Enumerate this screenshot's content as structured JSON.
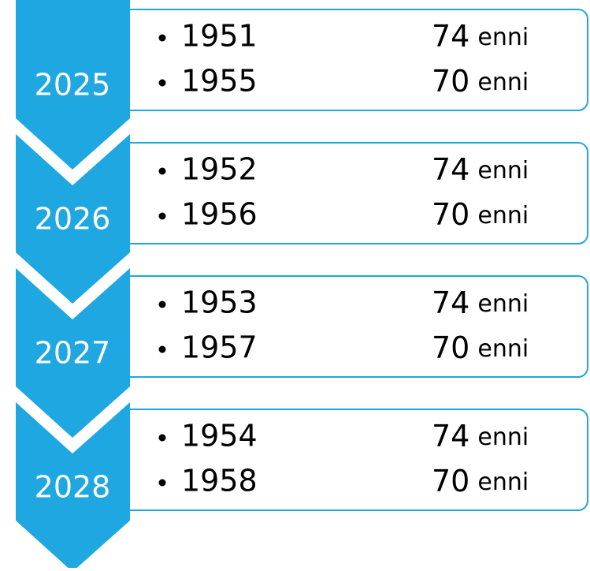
{
  "steps": [
    {
      "label": "2025",
      "items": [
        {
          "year": "1951",
          "age": "74",
          "unit": "enni"
        },
        {
          "year": "1955",
          "age": "70",
          "unit": "enni"
        }
      ]
    },
    {
      "label": "2026",
      "items": [
        {
          "year": "1952",
          "age": "74",
          "unit": "enni"
        },
        {
          "year": "1956",
          "age": "70",
          "unit": "enni"
        }
      ]
    },
    {
      "label": "2027",
      "items": [
        {
          "year": "1953",
          "age": "74",
          "unit": "enni"
        },
        {
          "year": "1957",
          "age": "70",
          "unit": "enni"
        }
      ]
    },
    {
      "label": "2028",
      "items": [
        {
          "year": "1954",
          "age": "74",
          "unit": "enni"
        },
        {
          "year": "1958",
          "age": "70",
          "unit": "enni"
        }
      ]
    }
  ]
}
